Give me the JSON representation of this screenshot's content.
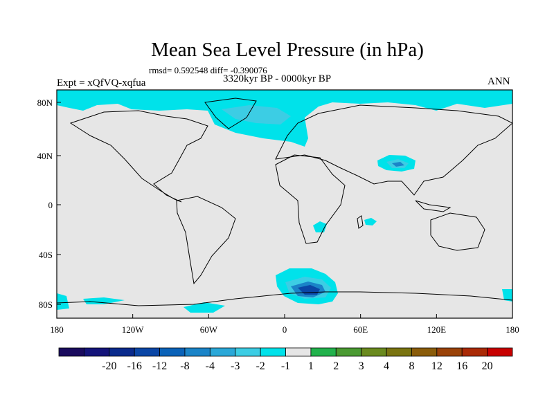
{
  "title": "Mean Sea Level Pressure (in hPa)",
  "stats": "rmsd= 0.592548 diff= -0.390076",
  "period": "3320kyr BP - 0000kyr BP",
  "experiment": "Expt = xQfVQ-xqfua",
  "season": "ANN",
  "lat_ticks": [
    "80N",
    "40N",
    "0",
    "40S",
    "80S"
  ],
  "lon_ticks": [
    "180",
    "120W",
    "60W",
    "0",
    "60E",
    "120E",
    "180"
  ],
  "colorbar": {
    "labels": [
      "-20",
      "-16",
      "-12",
      "-8",
      "-4",
      "-3",
      "-2",
      "-1",
      "1",
      "2",
      "3",
      "4",
      "8",
      "12",
      "16",
      "20"
    ],
    "colors": [
      "#1a0b5e",
      "#14147a",
      "#0a2a8c",
      "#0a46a6",
      "#0a62b8",
      "#1a84c8",
      "#2aa8d8",
      "#3ccde4",
      "#00e2ea",
      "#e6e6e6",
      "#22b24c",
      "#4a9a32",
      "#6a8a1e",
      "#7a7410",
      "#8a5c0a",
      "#9a4208",
      "#aa2a06",
      "#c80000"
    ]
  },
  "colors": {
    "background": "#e6e6e6",
    "light_cyan": "#00e2ea",
    "cyan": "#3ccde4",
    "blue": "#1a84c8",
    "dark_blue": "#0a46a6"
  }
}
